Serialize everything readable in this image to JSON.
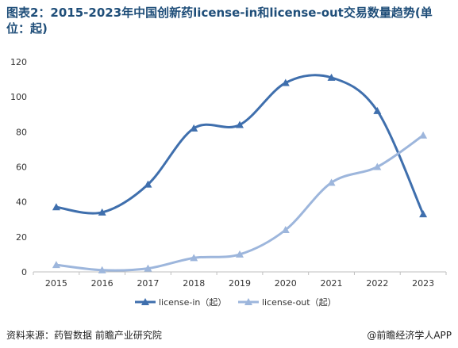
{
  "title": "图表2：2015-2023年中国创新药license-in和license-out交易数量趋势(单\n位：起)",
  "source": "资料来源：药智数据 前瞻产业研究院",
  "brand": "@前瞻经济学人APP",
  "colors": {
    "license_in": "#3f6fad",
    "license_out": "#9db6dc",
    "axis": "#bfbfbf",
    "title": "#1f4e79"
  },
  "chart_data": {
    "type": "line",
    "x": [
      "2015",
      "2016",
      "2017",
      "2018",
      "2019",
      "2020",
      "2021",
      "2022",
      "2023"
    ],
    "ylim": [
      0,
      120
    ],
    "yticks": [
      0,
      20,
      40,
      60,
      80,
      100,
      120
    ],
    "grid": false,
    "legend": "bottom",
    "series": [
      {
        "name": "license-in（起）",
        "values": [
          37,
          34,
          50,
          82,
          84,
          108,
          111,
          92,
          33
        ]
      },
      {
        "name": "license-out（起）",
        "values": [
          4,
          1,
          2,
          8,
          10,
          24,
          51,
          60,
          78
        ]
      }
    ]
  }
}
